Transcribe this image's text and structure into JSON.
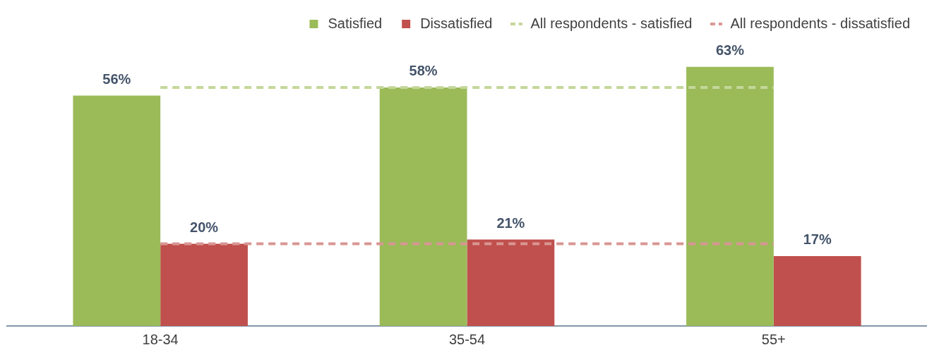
{
  "chart_data": {
    "type": "bar",
    "categories": [
      "18-34",
      "35-54",
      "55+"
    ],
    "series": [
      {
        "name": "Satisfied",
        "color": "#9bbb59",
        "values": [
          56,
          58,
          63
        ],
        "value_labels": [
          "56%",
          "58%",
          "63%"
        ]
      },
      {
        "name": "Dissatisfied",
        "color": "#c0504d",
        "values": [
          20,
          21,
          17
        ],
        "value_labels": [
          "20%",
          "21%",
          "17%"
        ]
      },
      {
        "name": "All respondents - satisfied",
        "type": "line",
        "line_style": "dashed",
        "marker": "none",
        "color": "#c4d79b",
        "values": [
          58,
          58,
          58
        ]
      },
      {
        "name": "All respondents - dissatisfied",
        "type": "line",
        "line_style": "dashed",
        "marker": "none",
        "color": "#d99694",
        "values": [
          20,
          20,
          20
        ]
      }
    ],
    "legend": "top right"
  }
}
